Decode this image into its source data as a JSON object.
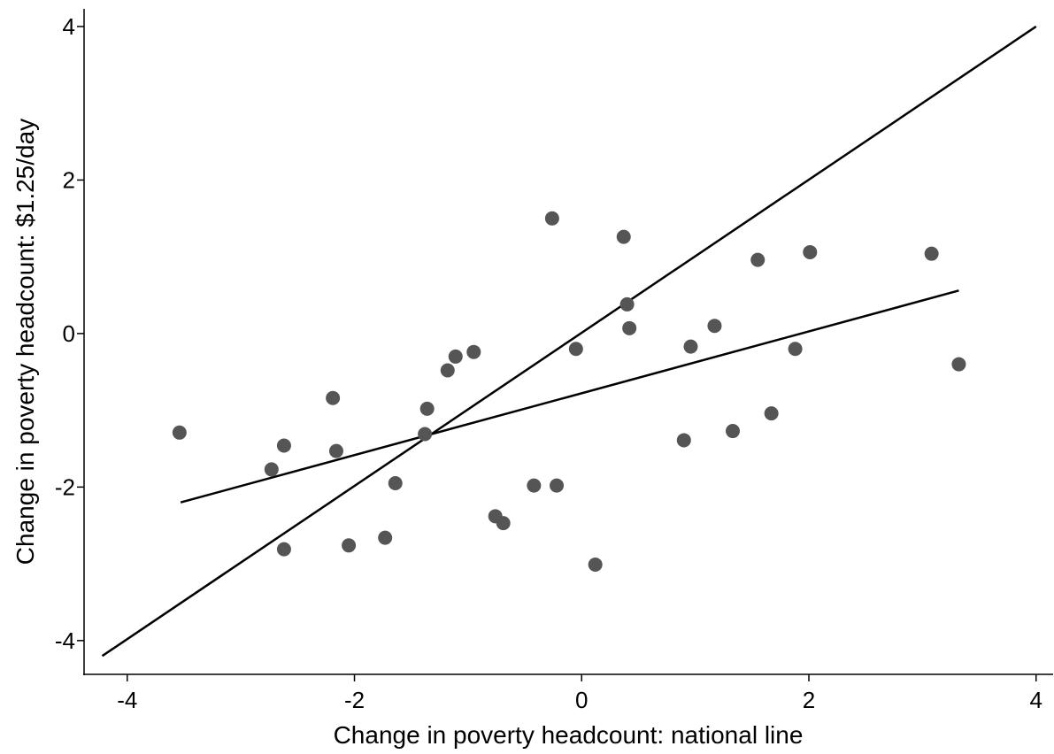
{
  "chart_data": {
    "type": "scatter",
    "x_label": "Change in poverty headcount: national line",
    "y_label": "Change in poverty headcount: $1.25/day",
    "x": [
      -3.54,
      -2.73,
      -2.62,
      -2.62,
      -2.19,
      -2.16,
      -2.05,
      -1.73,
      -1.64,
      -1.38,
      -1.36,
      -1.18,
      -1.11,
      -0.95,
      -0.76,
      -0.69,
      -0.42,
      -0.26,
      -0.22,
      -0.05,
      0.12,
      0.37,
      0.4,
      0.42,
      0.9,
      0.96,
      1.17,
      1.33,
      1.55,
      1.67,
      1.88,
      2.01,
      3.08,
      3.32
    ],
    "y": [
      -1.29,
      -1.77,
      -1.46,
      -2.81,
      -0.84,
      -1.53,
      -2.76,
      -2.66,
      -1.95,
      -1.31,
      -0.98,
      -0.48,
      -0.3,
      -0.24,
      -2.38,
      -2.47,
      -1.98,
      1.5,
      -1.98,
      -0.2,
      -3.01,
      1.26,
      0.38,
      0.07,
      -1.39,
      -0.17,
      0.1,
      -1.27,
      0.96,
      -1.04,
      -0.2,
      1.06,
      1.04,
      -0.4
    ],
    "color": "#555555",
    "lines": [
      {
        "x": [
          -4.22,
          4
        ],
        "y": [
          -4.2,
          4
        ],
        "color": "#000000"
      },
      {
        "x": [
          -3.53,
          3.32
        ],
        "y": [
          -2.2,
          0.56
        ],
        "color": "#000000"
      }
    ],
    "xlim": [
      -4.38,
      4.15
    ],
    "ylim": [
      -4.44,
      4.23
    ],
    "xticks": [
      -4,
      -2,
      0,
      2,
      4
    ],
    "yticks": [
      -4,
      -2,
      0,
      2,
      4
    ]
  }
}
